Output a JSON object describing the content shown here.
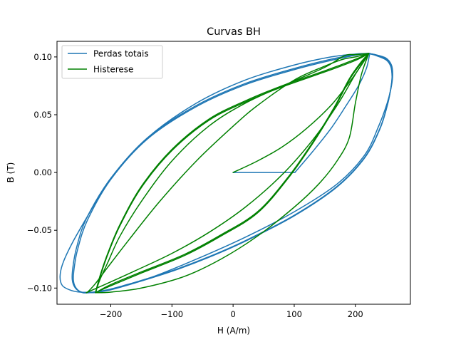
{
  "chart_data": {
    "type": "line",
    "title": "Curvas BH",
    "xlabel": "H (A/m)",
    "ylabel": "B (T)",
    "xlim": [
      -288,
      290
    ],
    "ylim": [
      -0.114,
      0.1135
    ],
    "xticks": [
      -200,
      -100,
      0,
      100,
      200
    ],
    "yticks": [
      -0.1,
      -0.05,
      0.0,
      0.05,
      0.1
    ],
    "xtick_labels": [
      "−200",
      "−100",
      "0",
      "100",
      "200"
    ],
    "ytick_labels": [
      "−0.10",
      "−0.05",
      "0.00",
      "0.05",
      "0.10"
    ],
    "grid": false,
    "legend": "top-left",
    "series": [
      {
        "name": "Perdas totais",
        "color": "#1f77b4",
        "segments": [
          {
            "x": [
              0,
              40,
              101
            ],
            "y": [
              0,
              0,
              0
            ]
          },
          {
            "x": [
              101,
              130,
              160,
              185,
              205,
              218,
              223,
              224,
              218,
              200,
              160,
              100,
              20,
              -60,
              -140,
              -200,
              -235
            ],
            "y": [
              0,
              0.018,
              0.038,
              0.058,
              0.075,
              0.09,
              0.1015,
              0.103,
              0.103,
              0.1025,
              0.1,
              0.093,
              0.08,
              0.06,
              0.03,
              -0.005,
              -0.035
            ]
          },
          {
            "x": [
              -235,
              -262,
              -278,
              -283,
              -279,
              -265,
              -250,
              -230,
              -210,
              -180,
              -130,
              -60,
              20,
              100,
              170,
              215,
              238,
              252,
              259,
              261,
              259,
              250,
              232,
              220
            ],
            "y": [
              -0.035,
              -0.06,
              -0.078,
              -0.09,
              -0.098,
              -0.102,
              -0.1035,
              -0.1035,
              -0.102,
              -0.098,
              -0.09,
              -0.075,
              -0.056,
              -0.034,
              -0.01,
              0.015,
              0.04,
              0.06,
              0.075,
              0.085,
              0.093,
              0.099,
              0.102,
              0.103
            ]
          },
          {
            "x": [
              220,
              200,
              160,
              100,
              20,
              -60,
              -140,
              -200,
              -240,
              -256,
              -262,
              -263,
              -258,
              -248,
              -236,
              -220,
              -200,
              -160,
              -100,
              -40,
              20,
              100,
              170,
              215,
              240,
              252,
              258,
              260,
              258,
              250,
              232,
              220
            ],
            "y": [
              0.103,
              0.102,
              0.098,
              0.09,
              0.077,
              0.058,
              0.03,
              -0.005,
              -0.04,
              -0.065,
              -0.082,
              -0.093,
              -0.1,
              -0.1035,
              -0.104,
              -0.1035,
              -0.101,
              -0.095,
              -0.085,
              -0.073,
              -0.059,
              -0.037,
              -0.012,
              0.013,
              0.038,
              0.058,
              0.073,
              0.083,
              0.092,
              0.098,
              0.102,
              0.103
            ]
          },
          {
            "x": [
              220,
              200,
              160,
              100,
              20,
              -60,
              -140,
              -200,
              -238,
              -254,
              -260,
              -261,
              -256,
              -246,
              -234,
              -220,
              -200,
              -160,
              -100,
              -40,
              20,
              100,
              170,
              215,
              240,
              252,
              258,
              260,
              258,
              250,
              232,
              220
            ],
            "y": [
              0.103,
              0.1015,
              0.097,
              0.089,
              0.076,
              0.057,
              0.029,
              -0.006,
              -0.041,
              -0.066,
              -0.083,
              -0.094,
              -0.1005,
              -0.104,
              -0.104,
              -0.1035,
              -0.1015,
              -0.0955,
              -0.0855,
              -0.0735,
              -0.0595,
              -0.0375,
              -0.0125,
              0.0125,
              0.0375,
              0.0575,
              0.0725,
              0.0825,
              0.0915,
              0.0975,
              0.1015,
              0.103
            ]
          }
        ]
      },
      {
        "name": "Histerese",
        "color": "#008000",
        "segments": [
          {
            "x": [
              0,
              40,
              80,
              120,
              160,
              190,
              210,
              222
            ],
            "y": [
              0,
              0.01,
              0.022,
              0.038,
              0.058,
              0.078,
              0.093,
              0.103
            ]
          },
          {
            "x": [
              222,
              200,
              150,
              80,
              20,
              -40,
              -100,
              -150,
              -185,
              -205,
              -218,
              -225
            ],
            "y": [
              0.103,
              0.098,
              0.088,
              0.075,
              0.062,
              0.046,
              0.02,
              -0.012,
              -0.045,
              -0.07,
              -0.09,
              -0.104
            ]
          },
          {
            "x": [
              -225,
              -200,
              -150,
              -80,
              -20,
              40,
              90,
              130,
              165,
              190,
              210,
              222
            ],
            "y": [
              -0.104,
              -0.098,
              -0.087,
              -0.072,
              -0.055,
              -0.035,
              -0.005,
              0.025,
              0.055,
              0.08,
              0.095,
              0.103
            ]
          },
          {
            "x": [
              222,
              200,
              150,
              80,
              20,
              -40,
              -100,
              -150,
              -185,
              -205,
              -218,
              -225
            ],
            "y": [
              0.103,
              0.097,
              0.087,
              0.074,
              0.061,
              0.045,
              0.019,
              -0.013,
              -0.046,
              -0.071,
              -0.091,
              -0.104
            ]
          },
          {
            "x": [
              -225,
              -200,
              -150,
              -80,
              -20,
              40,
              90,
              130,
              165,
              190,
              210,
              222
            ],
            "y": [
              -0.104,
              -0.097,
              -0.086,
              -0.071,
              -0.054,
              -0.034,
              -0.004,
              0.026,
              0.056,
              0.081,
              0.096,
              0.103
            ]
          },
          {
            "x": [
              222,
              200,
              182,
              150,
              90,
              20,
              -40,
              -100,
              -150,
              -185,
              -205,
              -218,
              -225
            ],
            "y": [
              0.103,
              0.102,
              0.101,
              0.091,
              0.077,
              0.06,
              0.04,
              0.01,
              -0.025,
              -0.055,
              -0.078,
              -0.093,
              -0.104
            ]
          },
          {
            "x": [
              -225,
              -200,
              -150,
              -80,
              -20,
              40,
              100,
              140,
              170,
              190,
              200,
              210,
              222
            ],
            "y": [
              -0.104,
              -0.1035,
              -0.1,
              -0.09,
              -0.075,
              -0.055,
              -0.03,
              -0.01,
              0.01,
              0.03,
              0.06,
              0.085,
              0.103
            ]
          },
          {
            "x": [
              222,
              200,
              180,
              150,
              100,
              40,
              0,
              -60,
              -120,
              -170,
              -205,
              -225,
              -236,
              -240
            ],
            "y": [
              0.103,
              0.1,
              0.098,
              0.092,
              0.08,
              0.058,
              0.04,
              0.01,
              -0.025,
              -0.058,
              -0.082,
              -0.096,
              -0.1025,
              -0.104
            ]
          },
          {
            "x": [
              -240,
              -210,
              -160,
              -100,
              -40,
              20,
              80,
              130,
              170,
              200,
              222
            ],
            "y": [
              -0.104,
              -0.097,
              -0.085,
              -0.07,
              -0.052,
              -0.03,
              -0.002,
              0.028,
              0.058,
              0.085,
              0.103
            ]
          }
        ]
      }
    ]
  }
}
